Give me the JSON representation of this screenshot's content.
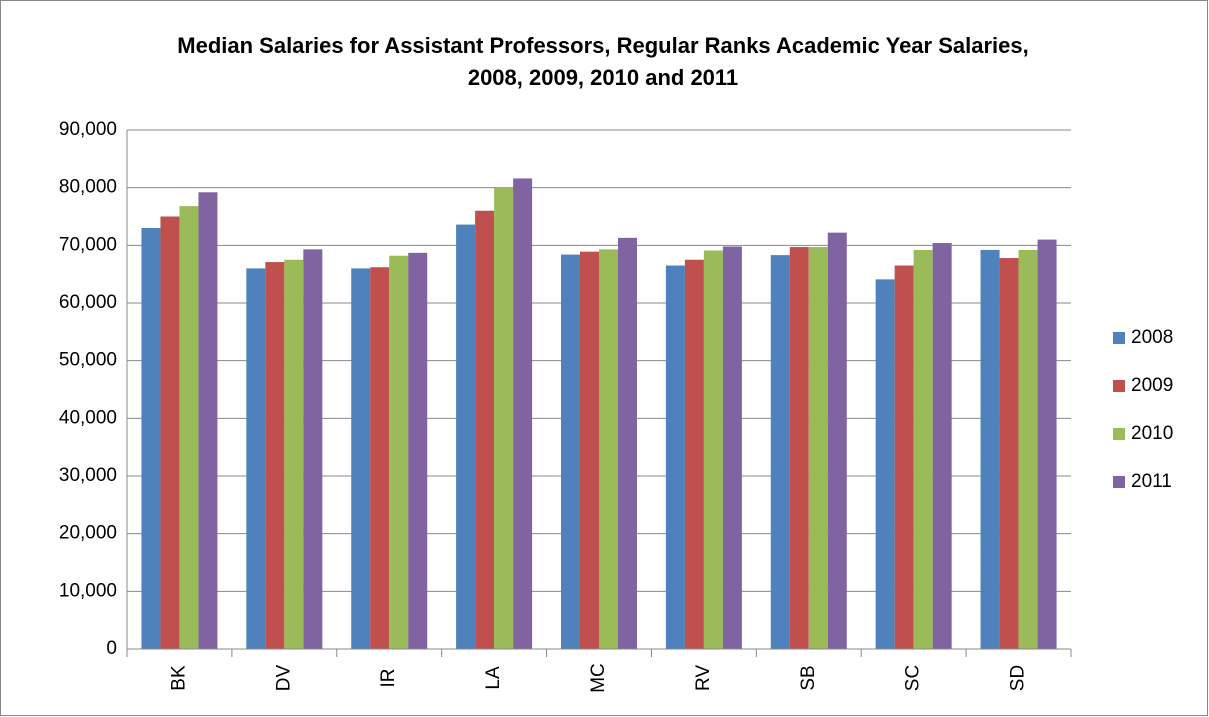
{
  "chart_data": {
    "type": "bar",
    "title": "Median Salaries for Assistant Professors, Regular Ranks Academic Year Salaries, 2008, 2009, 2010 and 2011",
    "categories": [
      "BK",
      "DV",
      "IR",
      "LA",
      "MC",
      "RV",
      "SB",
      "SC",
      "SD"
    ],
    "series": [
      {
        "name": "2008",
        "color": "#4f81bd",
        "values": [
          73000,
          66000,
          66000,
          73600,
          68400,
          66500,
          68300,
          64100,
          69200
        ]
      },
      {
        "name": "2009",
        "color": "#c0504d",
        "values": [
          75000,
          67100,
          66200,
          76000,
          68900,
          67500,
          69700,
          66500,
          67800
        ]
      },
      {
        "name": "2010",
        "color": "#9bbb59",
        "values": [
          76800,
          67500,
          68200,
          80000,
          69300,
          69100,
          69700,
          69200,
          69200
        ]
      },
      {
        "name": "2011",
        "color": "#8064a2",
        "values": [
          79200,
          69300,
          68700,
          81600,
          71300,
          69800,
          72200,
          70400,
          71000
        ]
      }
    ],
    "ylim": [
      0,
      90000
    ],
    "yticks": [
      0,
      {
        "value": 10000,
        "label": "10,000"
      },
      {
        "value": 20000,
        "label": "20,000"
      },
      {
        "value": 30000,
        "label": "30,000"
      },
      {
        "value": 40000,
        "label": "40,000"
      },
      {
        "value": 50000,
        "label": "50,000"
      },
      {
        "value": 60000,
        "label": "60,000"
      },
      {
        "value": 70000,
        "label": "70,000"
      },
      {
        "value": 80000,
        "label": "80,000"
      },
      {
        "value": 90000,
        "label": "90,000"
      }
    ],
    "grid": true,
    "legend": "right"
  }
}
